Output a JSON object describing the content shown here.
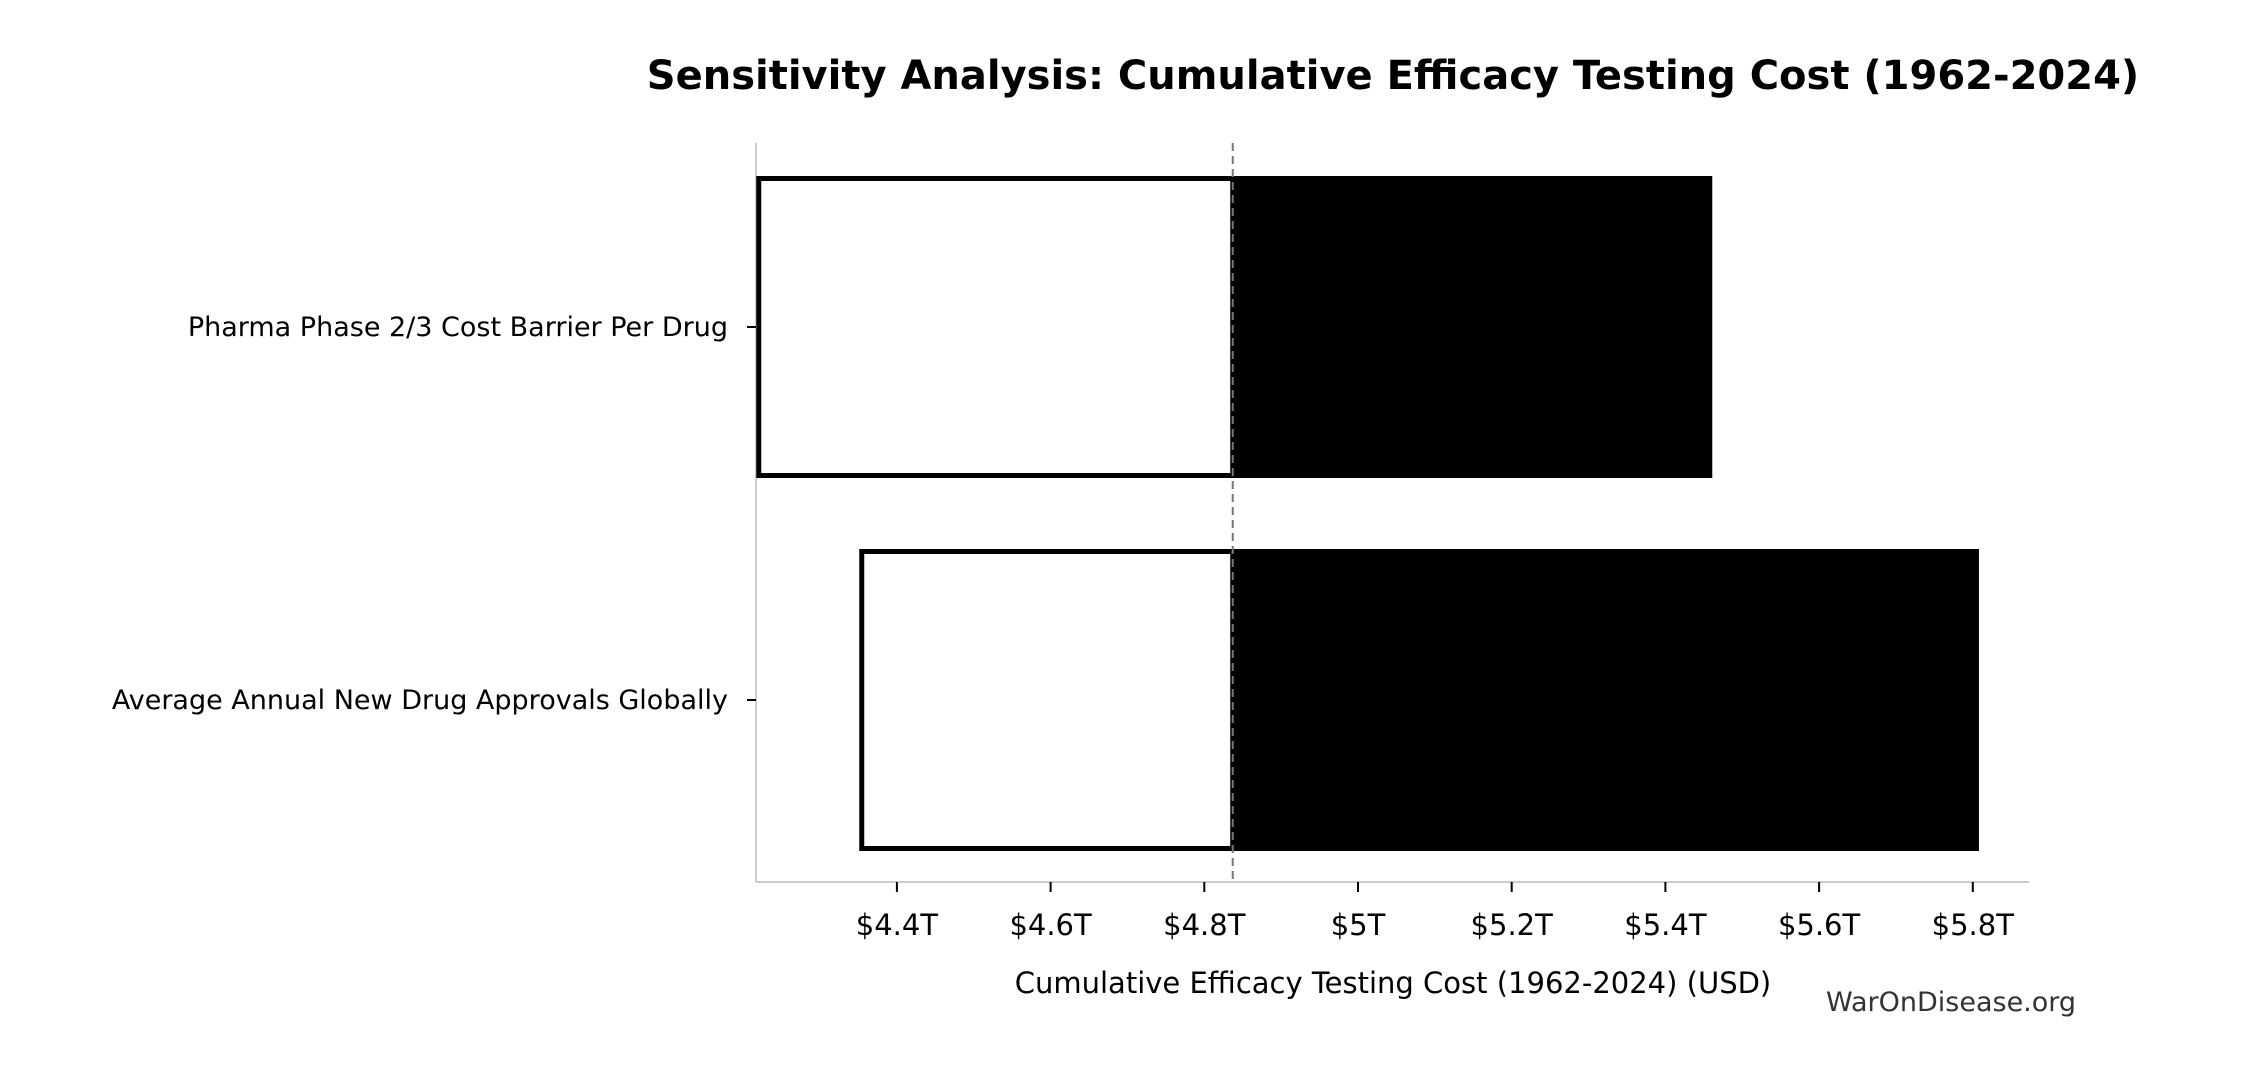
{
  "chart_data": {
    "type": "bar",
    "subtype": "tornado",
    "orientation": "horizontal",
    "title": "Sensitivity Analysis: Cumulative Efficacy Testing Cost (1962-2024)",
    "xlabel": "Cumulative Efficacy Testing Cost (1962-2024) (USD)",
    "ylabel": "",
    "xlim": [
      4.217,
      5.88
    ],
    "x_unit": "trillion USD",
    "baseline": 4.837,
    "x_ticks": [
      4.4,
      4.6,
      4.8,
      5.0,
      5.2,
      5.4,
      5.6,
      5.8
    ],
    "x_tick_labels": [
      "$4.4T",
      "$4.6T",
      "$4.8T",
      "$5T",
      "$5.2T",
      "$5.4T",
      "$5.6T",
      "$5.8T"
    ],
    "categories": [
      "Pharma Phase 2/3 Cost Barrier Per Drug",
      "Average Annual New Drug Approvals Globally"
    ],
    "series": [
      {
        "values_low": [
          4.217,
          4.351
        ],
        "values_high": [
          5.461,
          5.808
        ]
      }
    ],
    "colors": {
      "low_fill": "#ffffff",
      "low_stroke": "#000000",
      "high_fill": "#000000",
      "baseline": "#777777",
      "spine": "#cccccc"
    },
    "grid": false,
    "legend": "none"
  },
  "watermark": "WarOnDisease.org"
}
